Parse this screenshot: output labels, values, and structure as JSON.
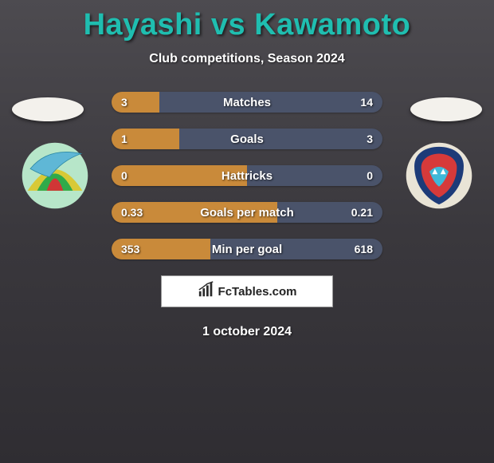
{
  "header": {
    "title": "Hayashi vs Kawamoto",
    "title_color": "#1fbeb0",
    "subtitle": "Club competitions, Season 2024",
    "subtitle_color": "#ffffff",
    "title_fontsize": 38,
    "subtitle_fontsize": 16
  },
  "players": {
    "left_oval_color": "#f3f1ec",
    "right_oval_color": "#f3f1ec"
  },
  "clubs": {
    "left": {
      "bg": "#b7e6c9",
      "stripes": [
        "#d8c936",
        "#2faa4a",
        "#d03636"
      ],
      "bird": "#5fb7d6"
    },
    "right": {
      "bg": "#e9e4d6",
      "frame": "#1d3b78",
      "inner": "#d63a3a",
      "accent": "#3fb8d8"
    }
  },
  "chart": {
    "bar_track_left": "#c98a3a",
    "bar_track_right": "#4a536a",
    "rows": [
      {
        "label": "Matches",
        "left_val": "3",
        "right_val": "14",
        "left_pct": 17.6,
        "right_pct": 82.4
      },
      {
        "label": "Goals",
        "left_val": "1",
        "right_val": "3",
        "left_pct": 25.0,
        "right_pct": 75.0
      },
      {
        "label": "Hattricks",
        "left_val": "0",
        "right_val": "0",
        "left_pct": 50.0,
        "right_pct": 50.0
      },
      {
        "label": "Goals per match",
        "left_val": "0.33",
        "right_val": "0.21",
        "left_pct": 61.1,
        "right_pct": 38.9
      },
      {
        "label": "Min per goal",
        "left_val": "353",
        "right_val": "618",
        "left_pct": 36.4,
        "right_pct": 63.6
      }
    ],
    "label_fontsize": 15,
    "value_fontsize": 14
  },
  "brand": {
    "text": "FcTables.com",
    "icon_color": "#2b2b2b",
    "bg": "#ffffff"
  },
  "footer": {
    "date": "1 october 2024"
  },
  "colors": {
    "bg_gradient_top": "#4d4b50",
    "bg_gradient_mid": "#3a383d",
    "bg_gradient_bot": "#2f2d32",
    "text": "#ffffff"
  }
}
